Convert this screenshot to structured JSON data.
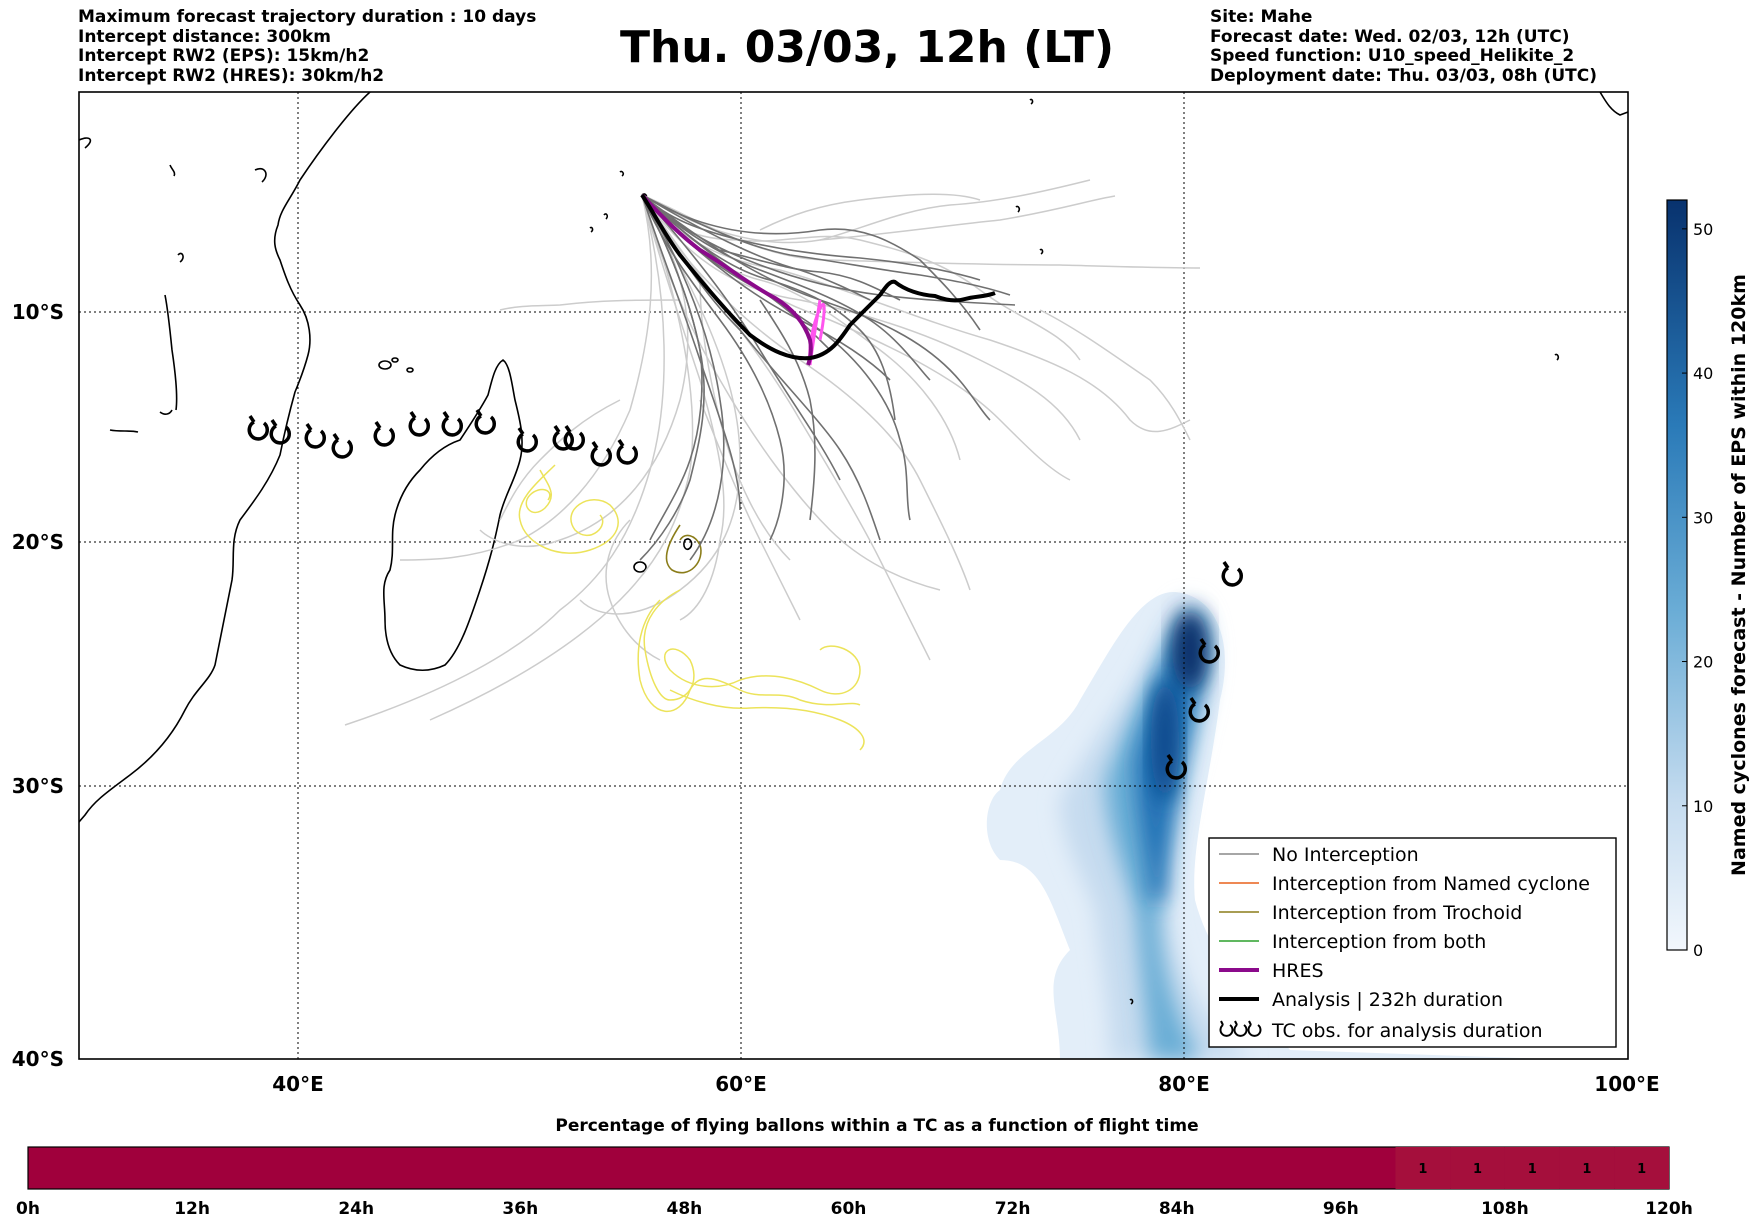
{
  "header": {
    "left_lines": [
      "Maximum forecast trajectory duration : 10 days",
      "Intercept distance: 300km",
      "Intercept RW2 (EPS):  15km/h2",
      "Intercept RW2 (HRES): 30km/h2"
    ],
    "title": "Thu. 03/03, 12h (LT)",
    "right_lines": [
      "Site: Mahe",
      "Forecast date: Wed. 02/03, 12h (UTC)",
      "Speed function: U10_speed_Helikite_2",
      "Deployment date: Thu. 03/03, 08h (UTC)"
    ]
  },
  "map": {
    "lat_labels": [
      "10°S",
      "20°S",
      "30°S",
      "40°S"
    ],
    "lon_labels": [
      "40°E",
      "60°E",
      "80°E",
      "100°E"
    ]
  },
  "colorbar": {
    "label": "Named cyclones forecast - Number of EPS within 120km",
    "ticks": [
      "0",
      "10",
      "20",
      "30",
      "40",
      "50"
    ],
    "min": 0,
    "max": 52
  },
  "legend": {
    "items": [
      {
        "label": "No Interception",
        "color": "#888888",
        "width": 1.5
      },
      {
        "label": "Interception from Named cyclone",
        "color": "#e8601c",
        "width": 1.5
      },
      {
        "label": "Interception from Trochoid",
        "color": "#8b7d1a",
        "width": 1.5
      },
      {
        "label": "Interception from both",
        "color": "#2ca02c",
        "width": 1.5
      },
      {
        "label": "HRES",
        "color": "#8b0a8b",
        "width": 4
      },
      {
        "label": "Analysis | 232h duration",
        "color": "#000000",
        "width": 4
      },
      {
        "label": "TC obs. for analysis duration",
        "symbol": "tc",
        "color": "#000000"
      }
    ]
  },
  "flight_bar": {
    "title": "Percentage of flying ballons within a TC as a function of flight time",
    "ticks": [
      "0h",
      "12h",
      "24h",
      "36h",
      "48h",
      "60h",
      "72h",
      "84h",
      "96h",
      "108h",
      "120h"
    ],
    "cell_values": [
      "1",
      "1",
      "1",
      "1",
      "1"
    ],
    "color": "#a0003c"
  },
  "colors": {
    "no_interception": "#888888",
    "hres": "#8b0a8b",
    "analysis": "#000000",
    "trochoid": "#8b7d1a",
    "pink": "#ff55ee",
    "yellow": "#ece35a"
  }
}
